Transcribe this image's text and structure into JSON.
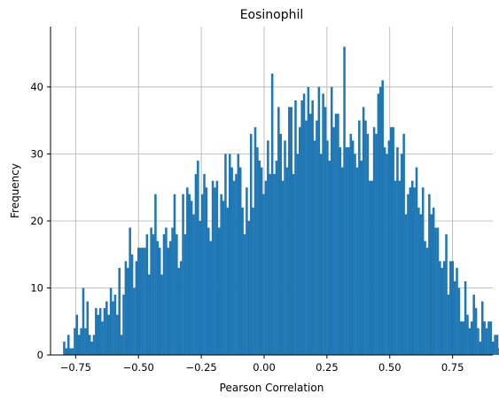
{
  "chart_data": {
    "type": "bar",
    "title": "Eosinophil",
    "xlabel": "Pearson Correlation",
    "ylabel": "Frequency",
    "xlim": [
      -0.85,
      0.91
    ],
    "ylim": [
      0,
      49
    ],
    "grid": true,
    "bar_color": "#1f77b4",
    "x_ticks": [
      -0.75,
      -0.5,
      -0.25,
      0.0,
      0.25,
      0.5,
      0.75
    ],
    "x_tick_labels": [
      "−0.75",
      "−0.50",
      "−0.25",
      "0.00",
      "0.25",
      "0.50",
      "0.75"
    ],
    "y_ticks": [
      0,
      10,
      20,
      30,
      40
    ],
    "y_tick_labels": [
      "0",
      "10",
      "20",
      "30",
      "40"
    ],
    "bin_start": -0.8,
    "bin_width": 0.008447,
    "values": [
      2,
      1,
      3,
      1,
      1,
      4,
      6,
      3,
      4,
      10,
      4,
      8,
      3,
      2,
      3,
      7,
      6,
      7,
      5,
      7,
      8,
      6,
      10,
      8,
      9,
      6,
      13,
      3,
      9,
      14,
      13,
      19,
      15,
      10,
      14,
      16,
      16,
      16,
      16,
      18,
      12,
      19,
      18,
      24,
      17,
      16,
      12,
      18,
      19,
      16,
      17,
      19,
      24,
      18,
      13,
      14,
      24,
      18,
      25,
      24,
      23,
      21,
      27,
      29,
      20,
      24,
      27,
      25,
      19,
      17,
      26,
      25,
      26,
      19,
      24,
      23,
      30,
      22,
      30,
      28,
      26,
      27,
      30,
      28,
      22,
      18,
      25,
      20,
      33,
      22,
      34,
      31,
      29,
      28,
      24,
      26,
      32,
      27,
      42,
      27,
      29,
      37,
      33,
      26,
      32,
      28,
      37,
      37,
      27,
      38,
      30,
      34,
      38,
      39,
      35,
      40,
      36,
      38,
      32,
      35,
      40,
      30,
      39,
      37,
      32,
      29,
      40,
      34,
      36,
      36,
      31,
      28,
      46,
      31,
      31,
      33,
      32,
      30,
      28,
      35,
      29,
      37,
      35,
      33,
      26,
      26,
      34,
      33,
      39,
      40,
      41,
      31,
      30,
      32,
      34,
      34,
      26,
      31,
      26,
      30,
      33,
      21,
      24,
      25,
      26,
      25,
      28,
      22,
      21,
      25,
      17,
      16,
      24,
      21,
      22,
      19,
      19,
      14,
      13,
      14,
      18,
      9,
      14,
      14,
      11,
      13,
      10,
      5,
      5,
      11,
      6,
      4,
      5,
      9,
      7,
      4,
      2,
      8,
      5,
      4,
      5,
      5,
      2,
      3,
      3,
      1,
      4,
      2
    ],
    "series": [
      {
        "name": "",
        "values": []
      }
    ]
  }
}
